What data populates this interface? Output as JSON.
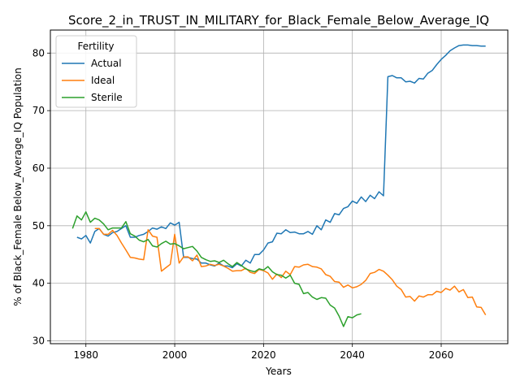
{
  "chart_data": {
    "type": "line",
    "title": "Score_2_in_TRUST_IN_MILITARY_for_Black_Female_Below_Average_IQ",
    "xlabel": "Years",
    "ylabel": "% of Black_Female Below_Average_IQ Population",
    "xlim": [
      1972,
      2075
    ],
    "ylim": [
      29.5,
      84
    ],
    "xticks": [
      1980,
      2000,
      2020,
      2040,
      2060
    ],
    "yticks": [
      30,
      40,
      50,
      60,
      70,
      80
    ],
    "grid": true,
    "legend": {
      "title": "Fertility",
      "placement": "top-left"
    },
    "series": [
      {
        "name": "Actual",
        "color": "#1f77b4",
        "points": [
          [
            1978,
            48.0
          ],
          [
            1979,
            47.7
          ],
          [
            1980,
            48.3
          ],
          [
            1981,
            47.0
          ],
          [
            1982,
            49.0
          ],
          [
            1983,
            49.5
          ],
          [
            1984,
            48.5
          ],
          [
            1985,
            48.2
          ],
          [
            1986,
            48.8
          ],
          [
            1987,
            49.0
          ],
          [
            1988,
            49.5
          ],
          [
            1989,
            50.0
          ],
          [
            1990,
            48.0
          ],
          [
            1991,
            48.0
          ],
          [
            1992,
            48.3
          ],
          [
            1993,
            48.5
          ],
          [
            1994,
            49.0
          ],
          [
            1995,
            49.6
          ],
          [
            1996,
            49.4
          ],
          [
            1997,
            49.8
          ],
          [
            1998,
            49.5
          ],
          [
            1999,
            50.5
          ],
          [
            2000,
            50.1
          ],
          [
            2001,
            50.6
          ],
          [
            2002,
            44.5
          ],
          [
            2003,
            44.5
          ],
          [
            2004,
            44.3
          ],
          [
            2005,
            44.2
          ],
          [
            2006,
            43.5
          ],
          [
            2007,
            43.5
          ],
          [
            2008,
            43.2
          ],
          [
            2009,
            43.0
          ],
          [
            2010,
            43.5
          ],
          [
            2011,
            43.0
          ],
          [
            2012,
            43.0
          ],
          [
            2013,
            42.7
          ],
          [
            2014,
            43.4
          ],
          [
            2015,
            43.0
          ],
          [
            2016,
            44.0
          ],
          [
            2017,
            43.5
          ],
          [
            2018,
            45.0
          ],
          [
            2019,
            45.0
          ],
          [
            2020,
            45.8
          ],
          [
            2021,
            47.0
          ],
          [
            2022,
            47.2
          ],
          [
            2023,
            48.7
          ],
          [
            2024,
            48.6
          ],
          [
            2025,
            49.3
          ],
          [
            2026,
            48.8
          ],
          [
            2027,
            48.9
          ],
          [
            2028,
            48.6
          ],
          [
            2029,
            48.6
          ],
          [
            2030,
            49.0
          ],
          [
            2031,
            48.5
          ],
          [
            2032,
            50.0
          ],
          [
            2033,
            49.3
          ],
          [
            2034,
            51.0
          ],
          [
            2035,
            50.6
          ],
          [
            2036,
            52.1
          ],
          [
            2037,
            51.9
          ],
          [
            2038,
            53.0
          ],
          [
            2039,
            53.3
          ],
          [
            2040,
            54.3
          ],
          [
            2041,
            53.9
          ],
          [
            2042,
            55.0
          ],
          [
            2043,
            54.2
          ],
          [
            2044,
            55.3
          ],
          [
            2045,
            54.7
          ],
          [
            2046,
            55.9
          ],
          [
            2047,
            55.2
          ],
          [
            2048,
            75.9
          ],
          [
            2049,
            76.1
          ],
          [
            2050,
            75.7
          ],
          [
            2051,
            75.7
          ],
          [
            2052,
            75.0
          ],
          [
            2053,
            75.1
          ],
          [
            2054,
            74.8
          ],
          [
            2055,
            75.6
          ],
          [
            2056,
            75.5
          ],
          [
            2057,
            76.5
          ],
          [
            2058,
            77.0
          ],
          [
            2059,
            78.0
          ],
          [
            2060,
            78.9
          ],
          [
            2061,
            79.6
          ],
          [
            2062,
            80.4
          ],
          [
            2063,
            80.9
          ],
          [
            2064,
            81.3
          ],
          [
            2065,
            81.4
          ],
          [
            2066,
            81.4
          ],
          [
            2067,
            81.3
          ],
          [
            2068,
            81.3
          ],
          [
            2069,
            81.2
          ],
          [
            2070,
            81.2
          ]
        ]
      },
      {
        "name": "Ideal",
        "color": "#ff7f0e",
        "points": [
          [
            1982,
            49.5
          ],
          [
            1983,
            49.5
          ],
          [
            1984,
            48.5
          ],
          [
            1985,
            48.5
          ],
          [
            1986,
            49.2
          ],
          [
            1987,
            48.3
          ],
          [
            1988,
            47.0
          ],
          [
            1989,
            45.8
          ],
          [
            1990,
            44.5
          ],
          [
            1991,
            44.4
          ],
          [
            1992,
            44.2
          ],
          [
            1993,
            44.1
          ],
          [
            1994,
            49.3
          ],
          [
            1995,
            48.2
          ],
          [
            1996,
            48.0
          ],
          [
            1997,
            42.1
          ],
          [
            1998,
            42.7
          ],
          [
            1999,
            43.3
          ],
          [
            2000,
            48.5
          ],
          [
            2001,
            43.5
          ],
          [
            2002,
            44.6
          ],
          [
            2003,
            44.6
          ],
          [
            2004,
            43.9
          ],
          [
            2005,
            44.9
          ],
          [
            2006,
            42.9
          ],
          [
            2007,
            43.0
          ],
          [
            2008,
            43.3
          ],
          [
            2009,
            43.1
          ],
          [
            2010,
            43.3
          ],
          [
            2011,
            43.0
          ],
          [
            2012,
            42.6
          ],
          [
            2013,
            42.1
          ],
          [
            2014,
            42.2
          ],
          [
            2015,
            42.2
          ],
          [
            2016,
            42.6
          ],
          [
            2017,
            41.9
          ],
          [
            2018,
            41.7
          ],
          [
            2019,
            42.4
          ],
          [
            2020,
            42.2
          ],
          [
            2021,
            41.8
          ],
          [
            2022,
            40.7
          ],
          [
            2023,
            41.6
          ],
          [
            2024,
            41.0
          ],
          [
            2025,
            42.1
          ],
          [
            2026,
            41.5
          ],
          [
            2027,
            42.9
          ],
          [
            2028,
            42.8
          ],
          [
            2029,
            43.2
          ],
          [
            2030,
            43.3
          ],
          [
            2031,
            42.9
          ],
          [
            2032,
            42.8
          ],
          [
            2033,
            42.5
          ],
          [
            2034,
            41.5
          ],
          [
            2035,
            41.2
          ],
          [
            2036,
            40.3
          ],
          [
            2037,
            40.2
          ],
          [
            2038,
            39.3
          ],
          [
            2039,
            39.7
          ],
          [
            2040,
            39.2
          ],
          [
            2041,
            39.4
          ],
          [
            2042,
            39.8
          ],
          [
            2043,
            40.5
          ],
          [
            2044,
            41.7
          ],
          [
            2045,
            41.9
          ],
          [
            2046,
            42.4
          ],
          [
            2047,
            42.1
          ],
          [
            2048,
            41.4
          ],
          [
            2049,
            40.6
          ],
          [
            2050,
            39.5
          ],
          [
            2051,
            38.9
          ],
          [
            2052,
            37.6
          ],
          [
            2053,
            37.7
          ],
          [
            2054,
            36.9
          ],
          [
            2055,
            37.8
          ],
          [
            2056,
            37.6
          ],
          [
            2057,
            38.0
          ],
          [
            2058,
            38.0
          ],
          [
            2059,
            38.6
          ],
          [
            2060,
            38.4
          ],
          [
            2061,
            39.1
          ],
          [
            2062,
            38.8
          ],
          [
            2063,
            39.5
          ],
          [
            2064,
            38.5
          ],
          [
            2065,
            38.9
          ],
          [
            2066,
            37.5
          ],
          [
            2067,
            37.6
          ],
          [
            2068,
            35.9
          ],
          [
            2069,
            35.8
          ],
          [
            2070,
            34.5
          ]
        ]
      },
      {
        "name": "Sterile",
        "color": "#2ca02c",
        "points": [
          [
            1977,
            49.5
          ],
          [
            1978,
            51.7
          ],
          [
            1979,
            51.0
          ],
          [
            1980,
            52.4
          ],
          [
            1981,
            50.6
          ],
          [
            1982,
            51.3
          ],
          [
            1983,
            51.0
          ],
          [
            1984,
            50.3
          ],
          [
            1985,
            49.3
          ],
          [
            1986,
            49.6
          ],
          [
            1987,
            49.6
          ],
          [
            1988,
            49.6
          ],
          [
            1989,
            50.7
          ],
          [
            1990,
            48.6
          ],
          [
            1991,
            48.2
          ],
          [
            1992,
            47.5
          ],
          [
            1993,
            47.2
          ],
          [
            1994,
            47.6
          ],
          [
            1995,
            46.5
          ],
          [
            1996,
            46.3
          ],
          [
            1997,
            46.9
          ],
          [
            1998,
            47.3
          ],
          [
            1999,
            46.8
          ],
          [
            2000,
            46.9
          ],
          [
            2001,
            46.5
          ],
          [
            2002,
            46.0
          ],
          [
            2003,
            46.2
          ],
          [
            2004,
            46.4
          ],
          [
            2005,
            45.6
          ],
          [
            2006,
            44.5
          ],
          [
            2007,
            44.1
          ],
          [
            2008,
            43.8
          ],
          [
            2009,
            43.9
          ],
          [
            2010,
            43.6
          ],
          [
            2011,
            44.0
          ],
          [
            2012,
            43.4
          ],
          [
            2013,
            42.9
          ],
          [
            2014,
            43.6
          ],
          [
            2015,
            43.1
          ],
          [
            2016,
            42.5
          ],
          [
            2017,
            42.2
          ],
          [
            2018,
            42.0
          ],
          [
            2019,
            42.5
          ],
          [
            2020,
            42.3
          ],
          [
            2021,
            42.9
          ],
          [
            2022,
            42.0
          ],
          [
            2023,
            41.5
          ],
          [
            2024,
            41.4
          ],
          [
            2025,
            40.9
          ],
          [
            2026,
            41.4
          ],
          [
            2027,
            40.0
          ],
          [
            2028,
            39.8
          ],
          [
            2029,
            38.2
          ],
          [
            2030,
            38.4
          ],
          [
            2031,
            37.6
          ],
          [
            2032,
            37.2
          ],
          [
            2033,
            37.5
          ],
          [
            2034,
            37.4
          ],
          [
            2035,
            36.2
          ],
          [
            2036,
            35.7
          ],
          [
            2037,
            34.3
          ],
          [
            2038,
            32.5
          ],
          [
            2039,
            34.2
          ],
          [
            2040,
            34.0
          ],
          [
            2041,
            34.5
          ],
          [
            2042,
            34.7
          ]
        ]
      }
    ]
  }
}
